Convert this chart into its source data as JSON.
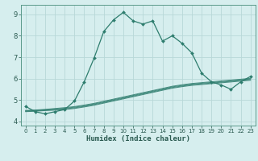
{
  "xlabel": "Humidex (Indice chaleur)",
  "xlim": [
    -0.5,
    23.5
  ],
  "ylim": [
    3.8,
    9.45
  ],
  "yticks": [
    4,
    5,
    6,
    7,
    8,
    9
  ],
  "xticks": [
    0,
    1,
    2,
    3,
    4,
    5,
    6,
    7,
    8,
    9,
    10,
    11,
    12,
    13,
    14,
    15,
    16,
    17,
    18,
    19,
    20,
    21,
    22,
    23
  ],
  "bg_color": "#d6eeee",
  "grid_color": "#b8d8d8",
  "line_color": "#2e7d6e",
  "main_x": [
    0,
    1,
    2,
    3,
    4,
    5,
    6,
    7,
    8,
    9,
    10,
    11,
    12,
    13,
    14,
    15,
    16,
    17,
    18,
    19,
    20,
    21,
    22,
    23
  ],
  "main_y": [
    4.7,
    4.45,
    4.35,
    4.45,
    4.55,
    4.95,
    5.85,
    6.95,
    8.2,
    8.75,
    9.1,
    8.7,
    8.55,
    8.7,
    7.75,
    8.0,
    7.65,
    7.2,
    6.25,
    5.85,
    5.7,
    5.5,
    5.85,
    6.1
  ],
  "flat_lines": [
    [
      4.45,
      4.47,
      4.5,
      4.52,
      4.55,
      4.6,
      4.67,
      4.75,
      4.85,
      4.95,
      5.05,
      5.15,
      5.25,
      5.35,
      5.45,
      5.55,
      5.62,
      5.68,
      5.72,
      5.76,
      5.8,
      5.84,
      5.88,
      5.92
    ],
    [
      4.47,
      4.49,
      4.52,
      4.55,
      4.58,
      4.63,
      4.7,
      4.78,
      4.88,
      4.98,
      5.08,
      5.18,
      5.28,
      5.38,
      5.48,
      5.58,
      5.65,
      5.71,
      5.75,
      5.79,
      5.83,
      5.87,
      5.91,
      5.95
    ],
    [
      4.49,
      4.51,
      4.54,
      4.57,
      4.61,
      4.66,
      4.73,
      4.81,
      4.91,
      5.01,
      5.11,
      5.21,
      5.31,
      5.41,
      5.51,
      5.61,
      5.68,
      5.74,
      5.78,
      5.82,
      5.86,
      5.9,
      5.94,
      5.98
    ],
    [
      4.51,
      4.53,
      4.56,
      4.6,
      4.64,
      4.69,
      4.76,
      4.84,
      4.94,
      5.04,
      5.14,
      5.24,
      5.34,
      5.44,
      5.54,
      5.64,
      5.71,
      5.77,
      5.81,
      5.85,
      5.89,
      5.93,
      5.97,
      6.01
    ]
  ]
}
